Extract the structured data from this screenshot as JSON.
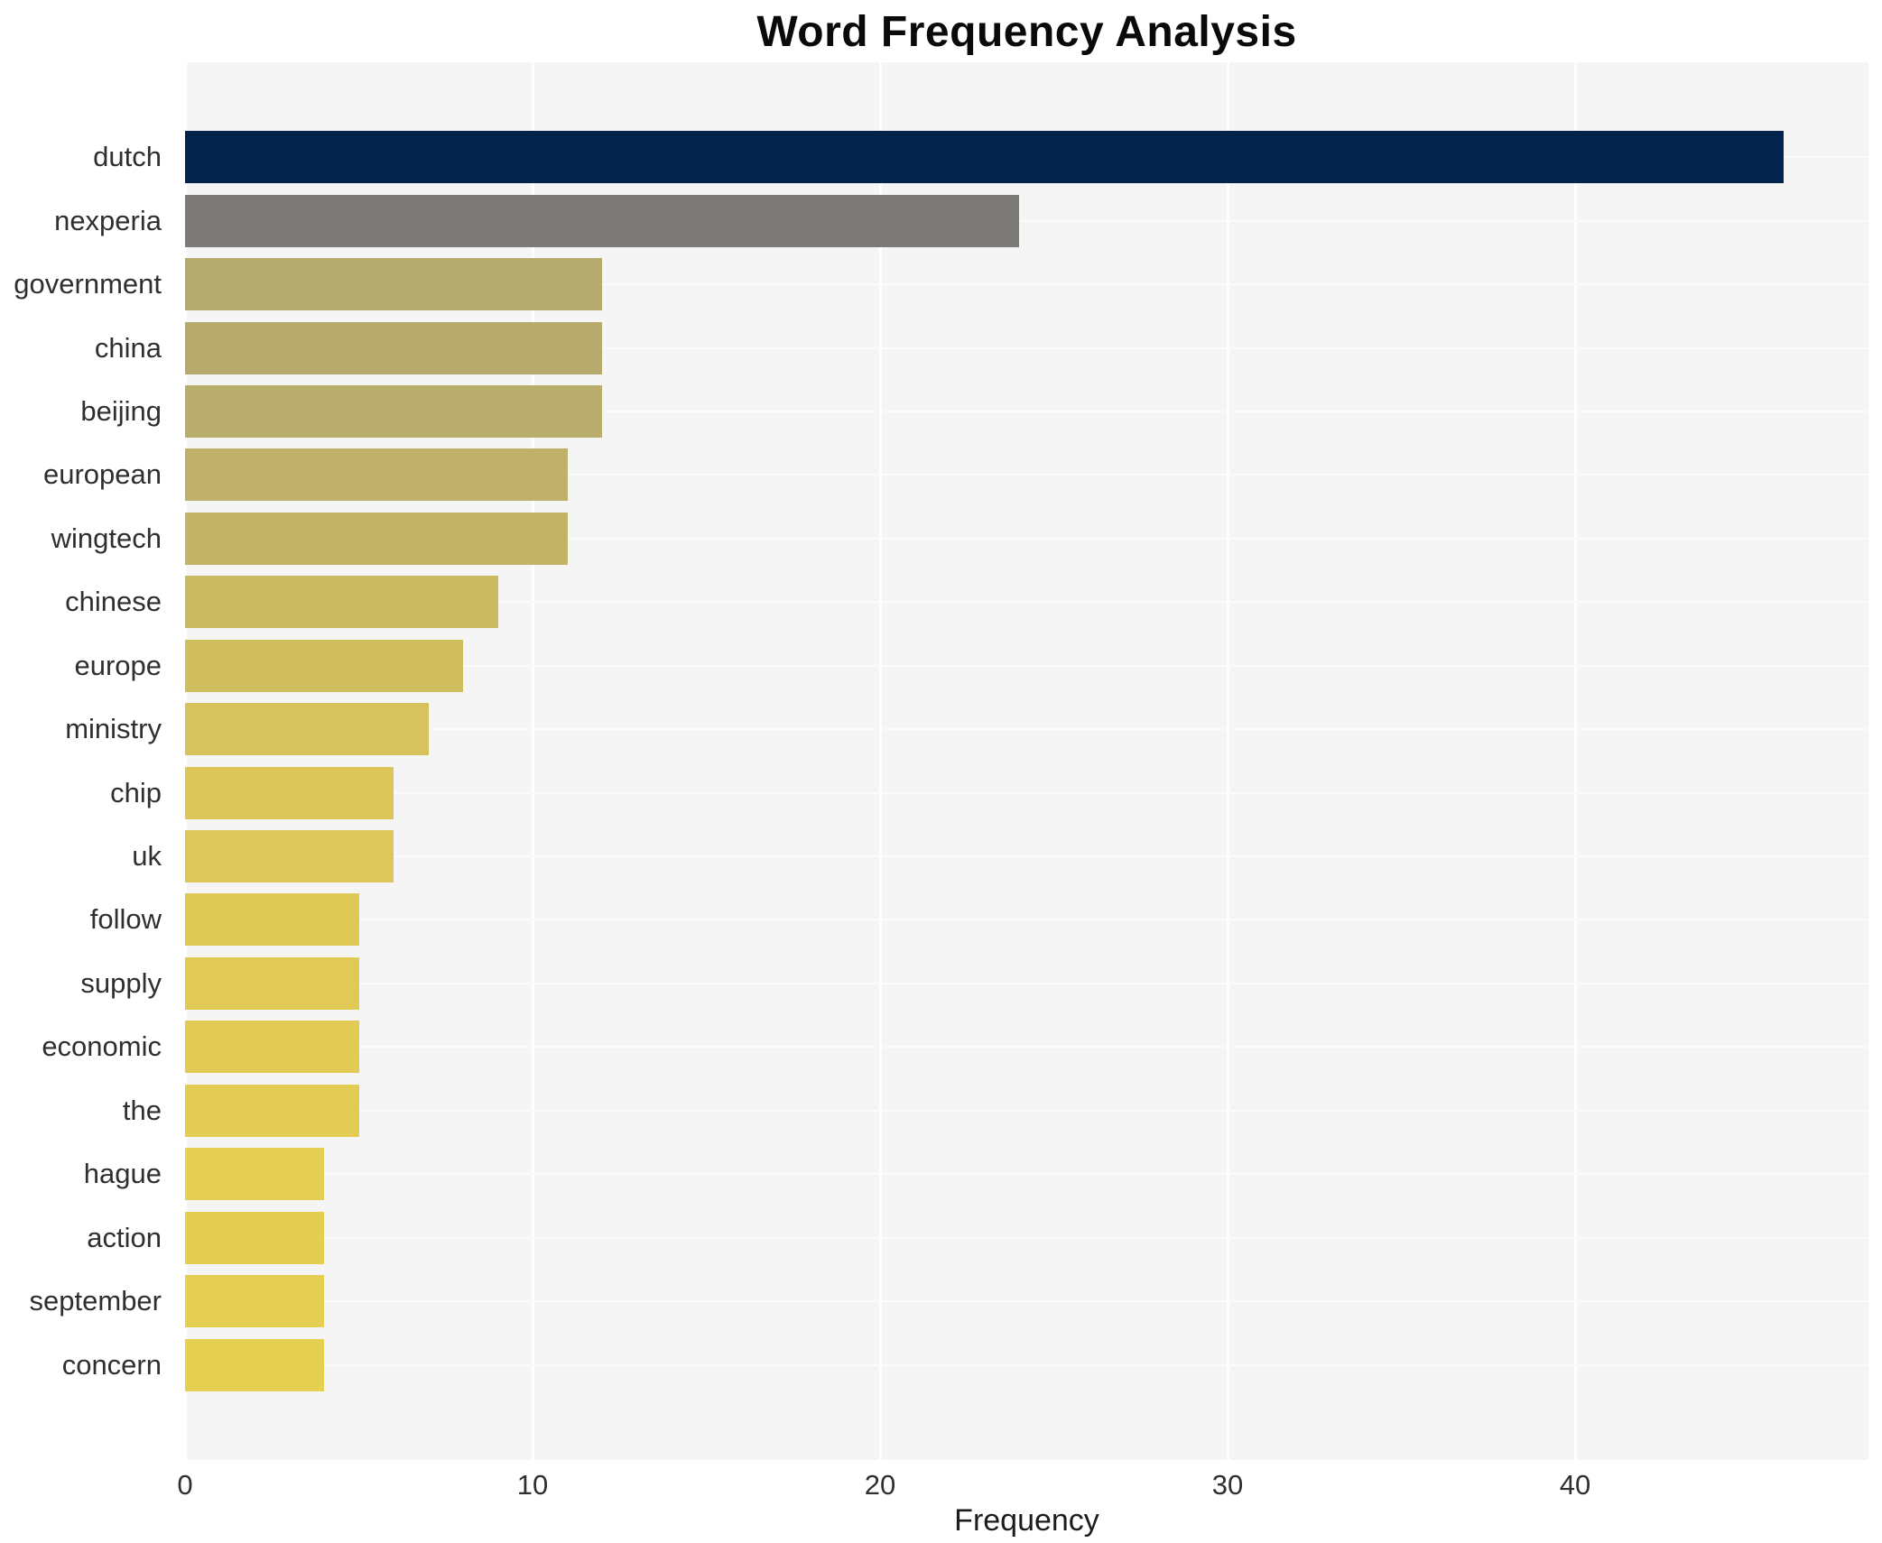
{
  "chart_data": {
    "type": "bar",
    "orientation": "horizontal",
    "title": "Word Frequency Analysis",
    "xlabel": "Frequency",
    "ylabel": "",
    "categories": [
      "dutch",
      "nexperia",
      "government",
      "china",
      "beijing",
      "european",
      "wingtech",
      "chinese",
      "europe",
      "ministry",
      "chip",
      "uk",
      "follow",
      "supply",
      "economic",
      "the",
      "hague",
      "action",
      "september",
      "concern"
    ],
    "values": [
      46,
      24,
      12,
      12,
      12,
      11,
      11,
      9,
      8,
      7,
      6,
      6,
      5,
      5,
      5,
      5,
      4,
      4,
      4,
      4
    ],
    "bar_colors": [
      "#02234c",
      "#7c7b78",
      "#b5ab6e",
      "#b6ab6d",
      "#b8ad6c",
      "#bfb169",
      "#c2b467",
      "#cbba62",
      "#d1bf5f",
      "#d7c35d",
      "#dcc65a",
      "#ddc75a",
      "#dfc956",
      "#e0ca55",
      "#e1cb55",
      "#e2cc54",
      "#e4ce53",
      "#e4ce52",
      "#e5cf52",
      "#e6d052"
    ],
    "xticks": [
      0,
      10,
      20,
      30,
      40
    ],
    "xlim": [
      0,
      48.4
    ],
    "grid": "white vertical gridlines at x ticks and white horizontal gridlines at each category row, on light gray panel",
    "legend_position": "none",
    "panel_background": "#f5f5f6",
    "figure_background": "#ffffff",
    "text_color": "#2f2f2f",
    "accent_colors": {
      "top_bar": "#02234c",
      "second_bar": "#7c7b78",
      "gradient_end": "#e6d052"
    }
  }
}
